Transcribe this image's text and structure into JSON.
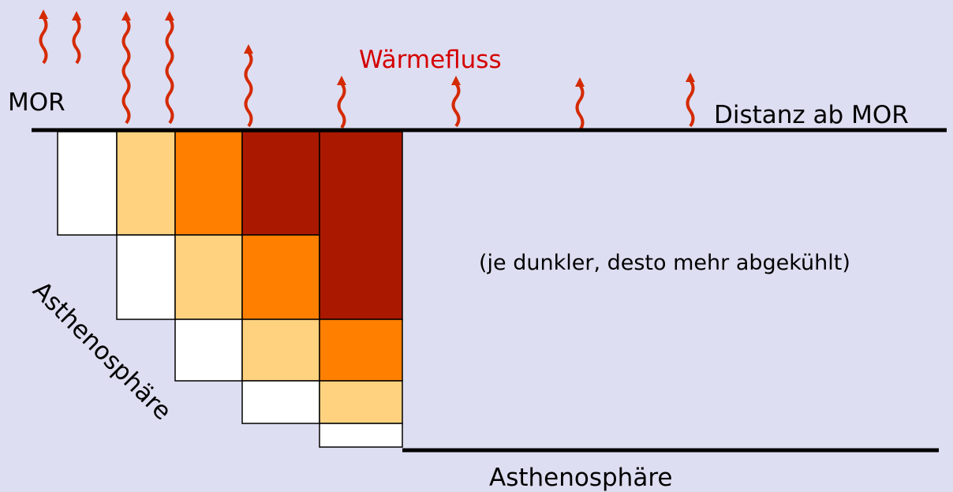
{
  "labels": {
    "mor": "MOR",
    "heat_flow": "Wärmefluss",
    "distance": "Distanz ab MOR",
    "note": "(je dunkler, desto mehr abgekühlt)",
    "asthenosphere_diagonal": "Asthenosphäre",
    "asthenosphere_bottom": "Asthenosphäre"
  }
}
